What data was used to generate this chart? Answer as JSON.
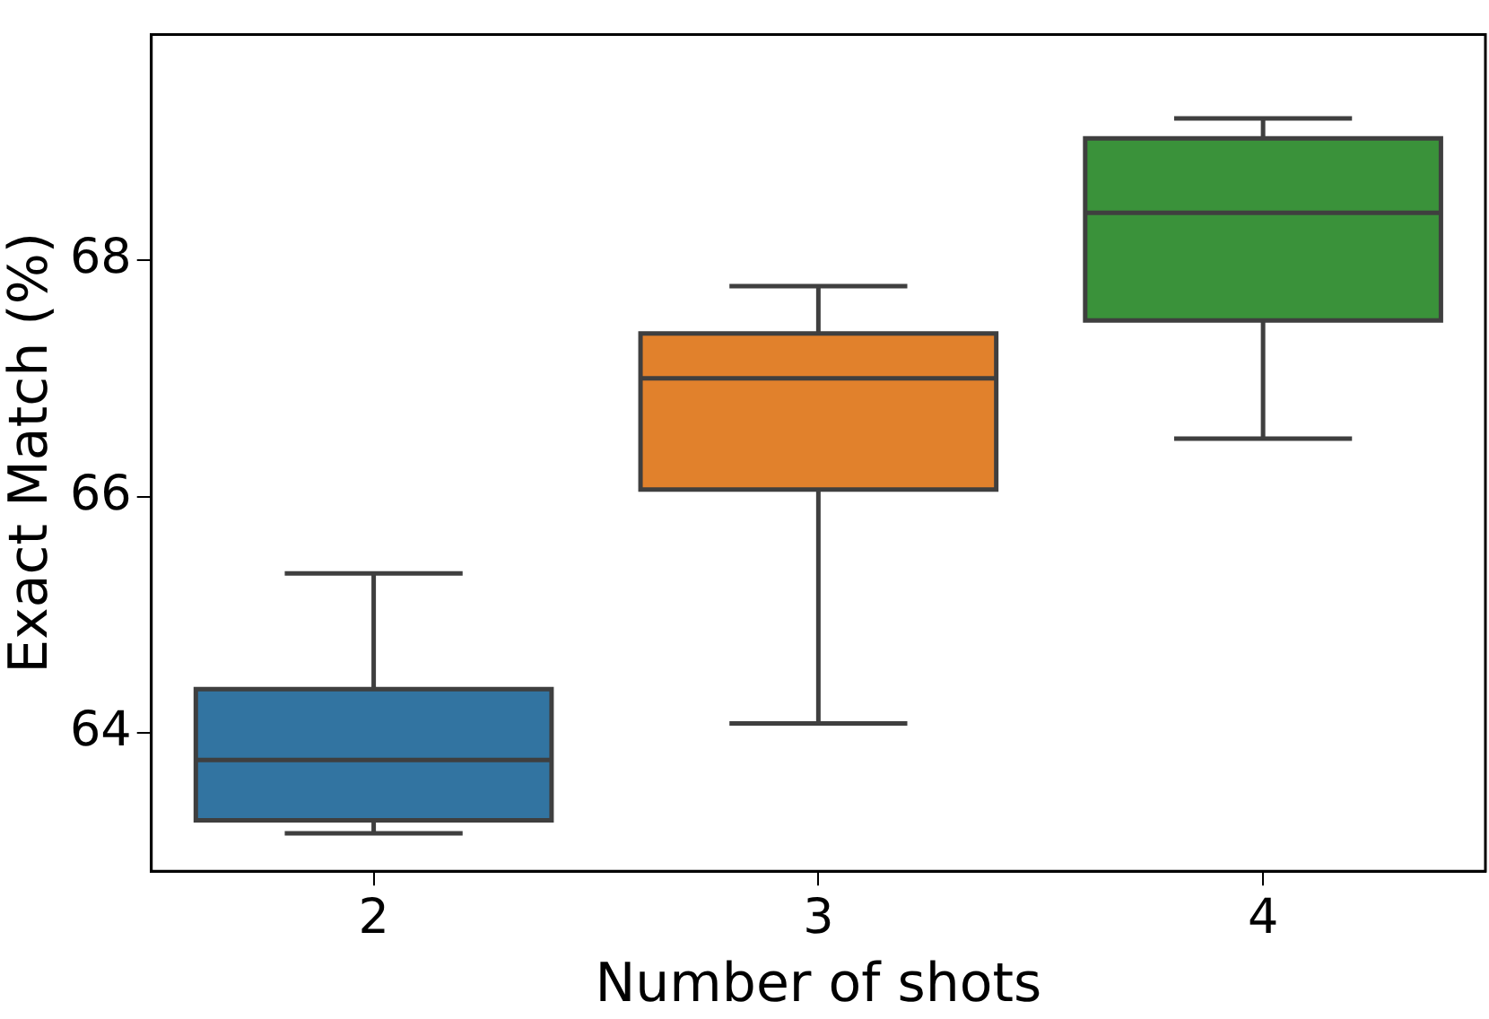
{
  "chart_data": {
    "type": "box",
    "categories": [
      "2",
      "3",
      "4"
    ],
    "boxes": [
      {
        "low": 63.15,
        "q1": 63.26,
        "median": 63.77,
        "q3": 64.37,
        "high": 65.35
      },
      {
        "low": 64.08,
        "q1": 66.06,
        "median": 67.0,
        "q3": 67.38,
        "high": 67.78
      },
      {
        "low": 66.49,
        "q1": 67.49,
        "median": 68.4,
        "q3": 69.03,
        "high": 69.2
      }
    ],
    "colors": [
      "#3274a1",
      "#e1812c",
      "#3a923a"
    ],
    "xlabel": "Number of shots",
    "ylabel": "Exact Match (%)",
    "ylim": [
      62.83,
      69.91
    ],
    "yticks": [
      64,
      66,
      68
    ]
  }
}
